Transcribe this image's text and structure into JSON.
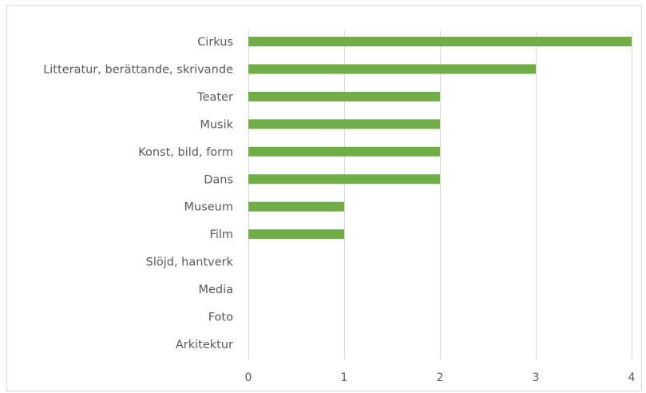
{
  "chart_data": {
    "type": "bar",
    "orientation": "horizontal",
    "categories": [
      "Cirkus",
      "Litteratur, berättande, skrivande",
      "Teater",
      "Musik",
      "Konst, bild, form",
      "Dans",
      "Museum",
      "Film",
      "Slöjd, hantverk",
      "Media",
      "Foto",
      "Arkitektur"
    ],
    "values": [
      4,
      3,
      2,
      2,
      2,
      2,
      1,
      1,
      0,
      0,
      0,
      0
    ],
    "xlim": [
      0,
      4
    ],
    "xticks": [
      "0",
      "1",
      "2",
      "3",
      "4"
    ],
    "grid": "vertical",
    "legend": "none",
    "bar_color": "#70ad47"
  }
}
